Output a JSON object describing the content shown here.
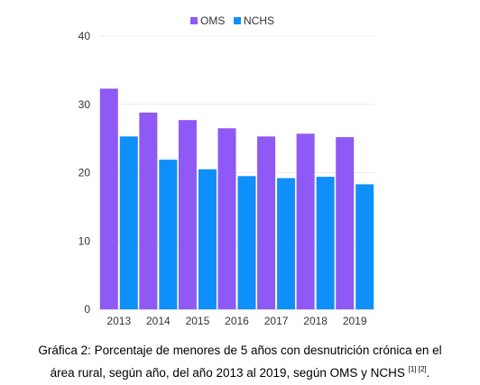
{
  "chart_data": {
    "type": "bar",
    "categories": [
      "2013",
      "2014",
      "2015",
      "2016",
      "2017",
      "2018",
      "2019"
    ],
    "series": [
      {
        "name": "OMS",
        "color": "#8e59f5",
        "values": [
          32.3,
          28.8,
          27.7,
          26.5,
          25.3,
          25.7,
          25.2
        ]
      },
      {
        "name": "NCHS",
        "color": "#0f8ffa",
        "values": [
          25.3,
          21.9,
          20.5,
          19.5,
          19.2,
          19.4,
          18.3
        ]
      }
    ],
    "yticks": [
      "0",
      "10",
      "20",
      "30",
      "40"
    ],
    "ylim": [
      0,
      40
    ],
    "legend_position": "top",
    "grid": true
  },
  "caption": {
    "line1": "Gráfica 2: Porcentaje de menores de 5 años con desnutrición crónica en el",
    "line2": "área rural, según año, del año 2013 al 2019, según OMS y NCHS",
    "refs": "[1] [2]",
    "end": "."
  }
}
